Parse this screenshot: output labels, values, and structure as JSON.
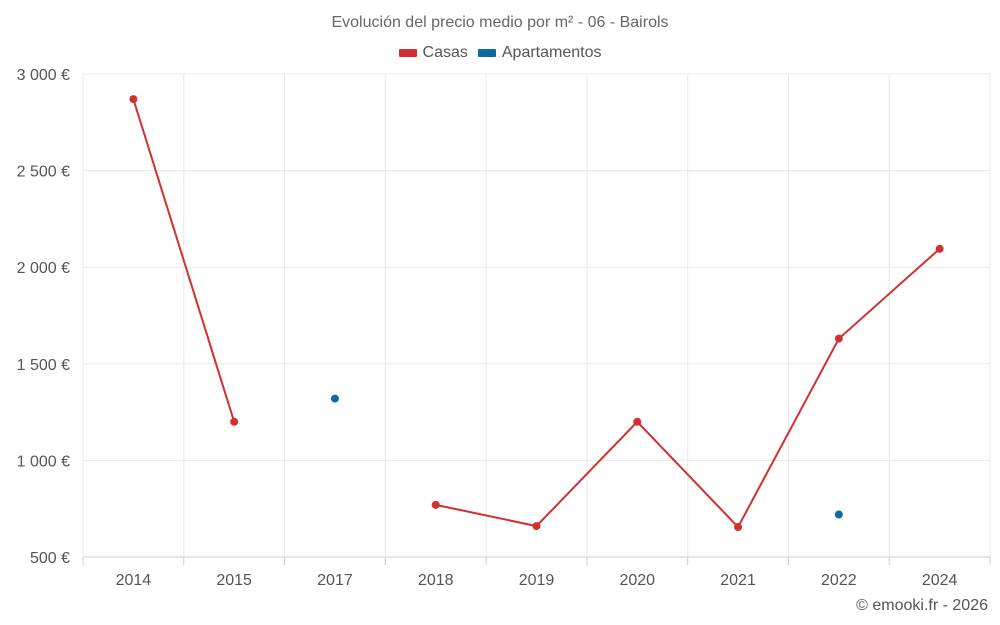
{
  "chart_data": {
    "type": "line",
    "title": "Evolución del precio medio por m² - 06 - Bairols",
    "categories": [
      "2014",
      "2015",
      "2017",
      "2018",
      "2019",
      "2020",
      "2021",
      "2022",
      "2024"
    ],
    "series": [
      {
        "name": "Casas",
        "color": "#d32f2f",
        "values": [
          2870,
          1200,
          null,
          770,
          660,
          1200,
          655,
          1630,
          2095
        ]
      },
      {
        "name": "Apartamentos",
        "color": "#0f6aa3",
        "values": [
          null,
          null,
          1320,
          null,
          null,
          null,
          null,
          720,
          null
        ]
      }
    ],
    "ylim": [
      500,
      3000
    ],
    "yticks": [
      500,
      1000,
      1500,
      2000,
      2500,
      3000
    ],
    "ytick_labels": [
      "500 €",
      "1 000 €",
      "1 500 €",
      "2 000 €",
      "2 500 €",
      "3 000 €"
    ],
    "grid": true,
    "legend_position": "top-center",
    "xlabel": "",
    "ylabel": ""
  },
  "credit": "© emooki.fr - 2026"
}
